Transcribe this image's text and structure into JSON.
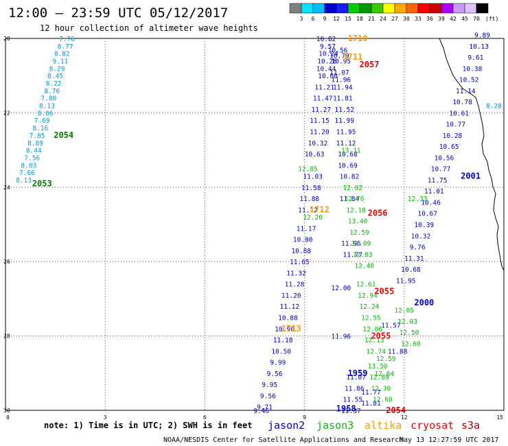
{
  "header": {
    "title": "12:00 — 23:59 UTC 05/12/2017",
    "subtitle": "12 hour collection of altimeter wave heights"
  },
  "colorbar": {
    "unit": "(ft)",
    "colors": [
      "#808080",
      "#00e5ff",
      "#00bfff",
      "#0000cc",
      "#1a1aff",
      "#00cc00",
      "#009900",
      "#33cc00",
      "#ffff00",
      "#ffaa00",
      "#ff6600",
      "#ff0000",
      "#cc0000",
      "#aa00ff",
      "#cc99ff",
      "#e0c0ff",
      "#000000"
    ],
    "labels": [
      "3",
      "6",
      "9",
      "12",
      "15",
      "18",
      "21",
      "24",
      "27",
      "30",
      "33",
      "36",
      "39",
      "42",
      "45",
      "70"
    ]
  },
  "footer": {
    "note": "note: 1) Time is in UTC; 2) SWH is in feet",
    "satellites": [
      {
        "name": "jason2",
        "color": "#0000cc"
      },
      {
        "name": "jason3",
        "color": "#00bb00"
      },
      {
        "name": "altika",
        "color": "#ff9900"
      },
      {
        "name": "cryosat",
        "color": "#ee0000"
      },
      {
        "name": "s3a",
        "color": "#aa0000"
      }
    ],
    "credit": "NOAA/NESDIS Center for Satellite Applications and Research",
    "timestamp": "May 13 12:27:59 UTC 2017"
  },
  "chart_data": {
    "type": "scatter",
    "xlim": [
      0,
      15
    ],
    "ylim": [
      -30,
      -20
    ],
    "xticks": [
      0,
      3,
      6,
      9,
      12,
      15
    ],
    "yticks": [
      -20,
      -22,
      -24,
      -26,
      -28,
      -30
    ],
    "ytick_labels": [
      "20",
      "22",
      "24",
      "26",
      "28",
      "30"
    ],
    "grid": true,
    "series": [
      {
        "name": "jason2",
        "color": "#0000cc",
        "points": [
          [
            9.65,
            -20.0,
            "10.82"
          ],
          [
            9.7,
            -20.2,
            "9.57"
          ],
          [
            9.72,
            -20.4,
            "10.24"
          ],
          [
            9.68,
            -20.6,
            "10.28"
          ],
          [
            9.65,
            -20.8,
            "10.44"
          ],
          [
            9.7,
            -21.0,
            "10.60"
          ],
          [
            9.6,
            -21.3,
            "11.21"
          ],
          [
            9.55,
            -21.6,
            "11.47"
          ],
          [
            9.5,
            -21.9,
            "11.27"
          ],
          [
            9.45,
            -22.2,
            "11.15"
          ],
          [
            9.45,
            -22.5,
            "11.20"
          ],
          [
            9.4,
            -22.8,
            "10.32"
          ],
          [
            9.3,
            -23.1,
            "10.63"
          ],
          [
            9.25,
            -23.7,
            "11.03"
          ],
          [
            9.2,
            -24.0,
            "11.58"
          ],
          [
            9.15,
            -24.3,
            "11.88"
          ],
          [
            9.1,
            -24.6,
            "11.12"
          ],
          [
            9.05,
            -25.1,
            "11.17"
          ],
          [
            8.95,
            -25.4,
            "10.80"
          ],
          [
            8.9,
            -25.7,
            "10.88"
          ],
          [
            8.85,
            -26.0,
            "11.65"
          ],
          [
            8.75,
            -26.3,
            "11.32"
          ],
          [
            8.7,
            -26.6,
            "11.28"
          ],
          [
            8.6,
            -26.9,
            "11.20"
          ],
          [
            8.55,
            -27.2,
            "11.12"
          ],
          [
            8.5,
            -27.5,
            "10.88"
          ],
          [
            8.4,
            -27.8,
            "10.90"
          ],
          [
            8.35,
            -28.1,
            "11.18"
          ],
          [
            8.3,
            -28.4,
            "10.50"
          ],
          [
            8.2,
            -28.7,
            "9.99"
          ],
          [
            8.1,
            -29.0,
            "9.56"
          ],
          [
            7.95,
            -29.3,
            "9.95"
          ],
          [
            7.9,
            -29.6,
            "9.56"
          ],
          [
            7.8,
            -29.9,
            "9.71"
          ],
          [
            7.7,
            -30.0,
            "9.46"
          ],
          [
            10.0,
            -20.3,
            "10.56"
          ],
          [
            10.05,
            -20.45,
            "10.79"
          ],
          [
            10.1,
            -20.6,
            "10.95"
          ],
          [
            10.05,
            -20.9,
            "11.07"
          ],
          [
            10.1,
            -21.1,
            "11.96"
          ],
          [
            10.15,
            -21.3,
            "11.94"
          ],
          [
            10.15,
            -21.6,
            "11.81"
          ],
          [
            10.2,
            -21.9,
            "11.52"
          ],
          [
            10.2,
            -22.2,
            "11.99"
          ],
          [
            10.25,
            -22.5,
            "11.95"
          ],
          [
            10.25,
            -22.8,
            "11.12"
          ],
          [
            10.3,
            -23.1,
            "10.68"
          ],
          [
            10.3,
            -23.4,
            "10.69"
          ],
          [
            10.35,
            -23.7,
            "10.82"
          ],
          [
            10.35,
            -24.3,
            "11.84"
          ],
          [
            10.4,
            -25.5,
            "11.96"
          ],
          [
            10.45,
            -25.8,
            "11.77"
          ],
          [
            11.6,
            -27.7,
            "11.57"
          ],
          [
            11.8,
            -28.4,
            "11.88"
          ],
          [
            12.05,
            -26.5,
            "11.95"
          ],
          [
            12.2,
            -26.2,
            "10.68"
          ],
          [
            12.3,
            -25.9,
            "11.31"
          ],
          [
            12.4,
            -25.6,
            "9.76"
          ],
          [
            12.5,
            -25.3,
            "10.32"
          ],
          [
            12.6,
            -25.0,
            "10.39"
          ],
          [
            12.7,
            -24.7,
            "10.67"
          ],
          [
            12.8,
            -24.4,
            "10.46"
          ],
          [
            12.9,
            -24.1,
            "11.01"
          ],
          [
            13.0,
            -23.8,
            "11.75"
          ],
          [
            13.1,
            -23.5,
            "10.77"
          ],
          [
            13.2,
            -23.2,
            "10.56"
          ],
          [
            13.35,
            -22.9,
            "10.65"
          ],
          [
            13.45,
            -22.6,
            "10.28"
          ],
          [
            13.55,
            -22.3,
            "10.77"
          ],
          [
            13.65,
            -22.0,
            "10.61"
          ],
          [
            13.75,
            -21.7,
            "10.78"
          ],
          [
            13.85,
            -21.4,
            "11.14"
          ],
          [
            13.95,
            -21.1,
            "10.52"
          ],
          [
            14.05,
            -20.8,
            "10.38"
          ],
          [
            14.15,
            -20.5,
            "9.61"
          ],
          [
            14.25,
            -20.2,
            "10.13"
          ],
          [
            14.35,
            -19.9,
            "9.89"
          ],
          [
            10.55,
            -29.1,
            "11.07"
          ],
          [
            10.5,
            -29.4,
            "11.86"
          ],
          [
            10.45,
            -29.7,
            "11.55"
          ],
          [
            10.4,
            -30.0,
            "11.37"
          ],
          [
            11.0,
            -29.8,
            "11.81"
          ],
          [
            11.0,
            -29.5,
            "11.77"
          ],
          [
            10.1,
            -28.0,
            "11.96"
          ],
          [
            10.1,
            -26.7,
            "12.00"
          ]
        ]
      },
      {
        "name": "jason3",
        "color": "#00bb00",
        "points": [
          [
            9.1,
            -23.5,
            "12.85"
          ],
          [
            9.25,
            -24.8,
            "12.20"
          ],
          [
            10.4,
            -23.0,
            "13.11"
          ],
          [
            10.45,
            -24.0,
            "12.02"
          ],
          [
            10.5,
            -24.3,
            "12.76"
          ],
          [
            10.55,
            -24.6,
            "12.18"
          ],
          [
            10.6,
            -24.9,
            "13.40"
          ],
          [
            10.65,
            -25.2,
            "12.59"
          ],
          [
            10.7,
            -25.5,
            "12.09"
          ],
          [
            10.75,
            -25.8,
            "12.83"
          ],
          [
            10.8,
            -26.1,
            "12.40"
          ],
          [
            10.85,
            -26.6,
            "12.61"
          ],
          [
            10.9,
            -26.9,
            "12.94"
          ],
          [
            10.95,
            -27.2,
            "12.24"
          ],
          [
            11.0,
            -27.5,
            "12.55"
          ],
          [
            11.05,
            -27.8,
            "12.06"
          ],
          [
            11.1,
            -28.1,
            "12.13"
          ],
          [
            11.15,
            -28.4,
            "12.74"
          ],
          [
            11.2,
            -28.8,
            "13.30"
          ],
          [
            11.25,
            -29.1,
            "12.89"
          ],
          [
            11.3,
            -29.4,
            "12.30"
          ],
          [
            11.35,
            -29.7,
            "12.60"
          ],
          [
            11.4,
            -29.0,
            "12.84"
          ],
          [
            11.45,
            -28.6,
            "12.59"
          ],
          [
            12.0,
            -27.3,
            "12.05"
          ],
          [
            12.1,
            -27.6,
            "12.03"
          ],
          [
            12.15,
            -27.9,
            "12.50"
          ],
          [
            12.2,
            -28.2,
            "12.60"
          ],
          [
            12.4,
            -24.3,
            "12.33"
          ]
        ]
      },
      {
        "name": "s3a",
        "color": "#0099dd",
        "points": [
          [
            1.85,
            -20.0,
            "7.76"
          ],
          [
            1.8,
            -20.2,
            "8.77"
          ],
          [
            1.7,
            -20.4,
            "8.82"
          ],
          [
            1.65,
            -20.6,
            "9.11"
          ],
          [
            1.55,
            -20.8,
            "8.29"
          ],
          [
            1.5,
            -21.0,
            "8.45"
          ],
          [
            1.45,
            -21.2,
            "8.22"
          ],
          [
            1.4,
            -21.4,
            "8.76"
          ],
          [
            1.3,
            -21.6,
            "7.80"
          ],
          [
            1.25,
            -21.8,
            "8.13"
          ],
          [
            1.2,
            -22.0,
            "8.06"
          ],
          [
            1.1,
            -22.2,
            "7.69"
          ],
          [
            1.05,
            -22.4,
            "8.16"
          ],
          [
            0.95,
            -22.6,
            "7.85"
          ],
          [
            0.9,
            -22.8,
            "8.89"
          ],
          [
            0.85,
            -23.0,
            "8.44"
          ],
          [
            0.8,
            -23.2,
            "7.56"
          ],
          [
            0.7,
            -23.4,
            "8.03"
          ],
          [
            0.65,
            -23.6,
            "7.66"
          ],
          [
            0.55,
            -23.8,
            "8.13"
          ],
          [
            14.7,
            -21.8,
            "8.28"
          ]
        ]
      }
    ],
    "pass_labels": [
      {
        "x": 1.75,
        "y": -22.6,
        "text": "2054",
        "color": "#007700"
      },
      {
        "x": 1.1,
        "y": -23.9,
        "text": "2053",
        "color": "#007700"
      },
      {
        "x": 10.6,
        "y": -20.0,
        "text": "1710",
        "color": "#ff9900"
      },
      {
        "x": 10.45,
        "y": -20.5,
        "text": "1711",
        "color": "#ff9900"
      },
      {
        "x": 10.95,
        "y": -20.7,
        "text": "2057",
        "color": "#ee0000"
      },
      {
        "x": 9.45,
        "y": -24.6,
        "text": "1712",
        "color": "#ff9900"
      },
      {
        "x": 11.2,
        "y": -24.7,
        "text": "2056",
        "color": "#ee0000"
      },
      {
        "x": 14.0,
        "y": -23.7,
        "text": "2001",
        "color": "#0000cc"
      },
      {
        "x": 11.4,
        "y": -26.8,
        "text": "2055",
        "color": "#ee0000"
      },
      {
        "x": 12.6,
        "y": -27.1,
        "text": "2000",
        "color": "#0000cc"
      },
      {
        "x": 8.6,
        "y": -27.8,
        "text": "1713",
        "color": "#ff9900"
      },
      {
        "x": 11.3,
        "y": -28.0,
        "text": "2055",
        "color": "#ee0000"
      },
      {
        "x": 10.6,
        "y": -29.0,
        "text": "1959",
        "color": "#0000cc"
      },
      {
        "x": 10.25,
        "y": -29.95,
        "text": "1958",
        "color": "#0000cc"
      },
      {
        "x": 11.75,
        "y": -30.0,
        "text": "2054",
        "color": "#ee0000"
      }
    ]
  }
}
